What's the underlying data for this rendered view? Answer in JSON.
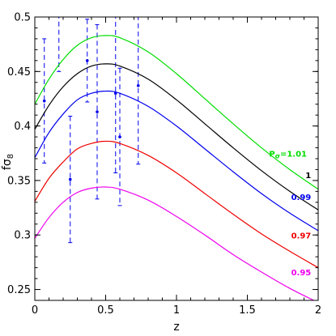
{
  "chart_data": {
    "type": "line",
    "xlabel": "z",
    "ylabel": "fσ8",
    "ylabel_main": "fσ",
    "ylabel_sub": "8",
    "xlim": [
      0,
      2
    ],
    "ylim": [
      0.24,
      0.5
    ],
    "x_ticks": [
      0,
      0.5,
      1,
      1.5,
      2
    ],
    "x_tick_labels": [
      "0",
      "0.5",
      "1",
      "1.5",
      "2"
    ],
    "y_ticks": [
      0.25,
      0.3,
      0.35,
      0.4,
      0.45,
      0.5
    ],
    "y_tick_labels": [
      "0.25",
      "0.3",
      "0.35",
      "0.4",
      "0.45",
      "0.5"
    ],
    "grid": false,
    "legend": "none",
    "series": [
      {
        "label": "Pσ=1.01",
        "label_main": "P",
        "label_sub": "σ",
        "label_rest": "=1.01",
        "color": "#00dd00",
        "x": [
          0,
          0.1,
          0.2,
          0.3,
          0.4,
          0.5,
          0.6,
          0.8,
          1.0,
          1.2,
          1.4,
          1.6,
          1.8,
          2.0
        ],
        "y": [
          0.42,
          0.443,
          0.461,
          0.474,
          0.481,
          0.483,
          0.481,
          0.468,
          0.448,
          0.425,
          0.402,
          0.38,
          0.36,
          0.342
        ]
      },
      {
        "label": "1",
        "color": "#000000",
        "x": [
          0,
          0.1,
          0.2,
          0.3,
          0.4,
          0.5,
          0.6,
          0.8,
          1.0,
          1.2,
          1.4,
          1.6,
          1.8,
          2.0
        ],
        "y": [
          0.397,
          0.419,
          0.436,
          0.448,
          0.455,
          0.457,
          0.455,
          0.443,
          0.424,
          0.402,
          0.38,
          0.359,
          0.34,
          0.323
        ]
      },
      {
        "label": "0.99",
        "color": "#0000ee",
        "x": [
          0,
          0.1,
          0.2,
          0.3,
          0.4,
          0.5,
          0.6,
          0.8,
          1.0,
          1.2,
          1.4,
          1.6,
          1.8,
          2.0
        ],
        "y": [
          0.371,
          0.394,
          0.411,
          0.424,
          0.43,
          0.432,
          0.43,
          0.418,
          0.4,
          0.379,
          0.358,
          0.338,
          0.32,
          0.304
        ]
      },
      {
        "label": "0.97",
        "color": "#ee0000",
        "x": [
          0,
          0.1,
          0.2,
          0.3,
          0.4,
          0.5,
          0.6,
          0.8,
          1.0,
          1.2,
          1.4,
          1.6,
          1.8,
          2.0
        ],
        "y": [
          0.331,
          0.352,
          0.367,
          0.379,
          0.384,
          0.386,
          0.384,
          0.373,
          0.357,
          0.338,
          0.319,
          0.301,
          0.285,
          0.27
        ]
      },
      {
        "label": "0.95",
        "color": "#ee00ee",
        "x": [
          0,
          0.1,
          0.2,
          0.3,
          0.4,
          0.5,
          0.6,
          0.8,
          1.0,
          1.2,
          1.4,
          1.6,
          1.8,
          2.0
        ],
        "y": [
          0.297,
          0.316,
          0.33,
          0.339,
          0.343,
          0.344,
          0.342,
          0.332,
          0.317,
          0.3,
          0.282,
          0.266,
          0.251,
          0.238
        ]
      }
    ],
    "error_bars": {
      "color": "#0000ee",
      "points": [
        {
          "x": 0.067,
          "y": 0.423,
          "lo": 0.366,
          "hi": 0.48
        },
        {
          "x": 0.17,
          "y": 0.51,
          "lo": 0.45,
          "hi": 0.57
        },
        {
          "x": 0.25,
          "y": 0.351,
          "lo": 0.293,
          "hi": 0.409
        },
        {
          "x": 0.37,
          "y": 0.46,
          "lo": 0.422,
          "hi": 0.498
        },
        {
          "x": 0.44,
          "y": 0.413,
          "lo": 0.333,
          "hi": 0.493
        },
        {
          "x": 0.57,
          "y": 0.43,
          "lo": 0.357,
          "hi": 0.503
        },
        {
          "x": 0.6,
          "y": 0.39,
          "lo": 0.327,
          "hi": 0.453
        },
        {
          "x": 0.73,
          "y": 0.437,
          "lo": 0.365,
          "hi": 0.509
        }
      ]
    }
  }
}
